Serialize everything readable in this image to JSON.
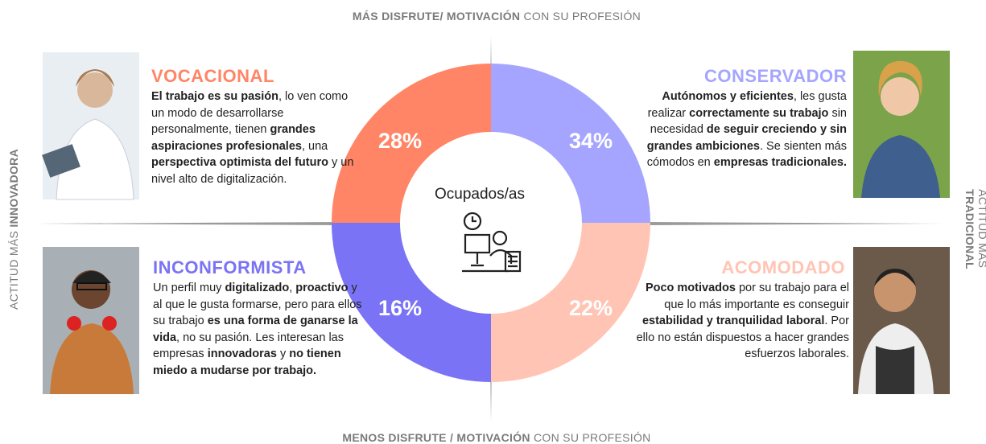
{
  "axes": {
    "top": [
      {
        "text": "MÁS DISFRUTE/ MOTIVACIÓN",
        "bold": true
      },
      {
        "text": " CON SU PROFESIÓN",
        "bold": false
      }
    ],
    "bottom": [
      {
        "text": "MENOS DISFRUTE / MOTIVACIÓN",
        "bold": true
      },
      {
        "text": " CON SU PROFESIÓN",
        "bold": false
      }
    ],
    "left": [
      {
        "text": "ACTITUD MÁS ",
        "bold": false
      },
      {
        "text": "INNOVADORA",
        "bold": true
      }
    ],
    "right": [
      {
        "text": "ACTITUD MÁS ",
        "bold": false
      },
      {
        "text": "TRADICIONAL",
        "bold": true
      }
    ]
  },
  "center_label": "Ocupados/as",
  "quadrants": [
    {
      "title": "VOCACIONAL",
      "percent": "28%",
      "color": "#ff8566",
      "text": [
        {
          "text": "El trabajo es su pasión",
          "bold": true
        },
        {
          "text": ", lo ven como un modo de desarrollarse personalmente, tienen ",
          "bold": false
        },
        {
          "text": "grandes aspiraciones profesionales",
          "bold": true
        },
        {
          "text": ", una ",
          "bold": false
        },
        {
          "text": "perspectiva optimista del futuro",
          "bold": true
        },
        {
          "text": " y un nivel alto de digitalización.",
          "bold": false
        }
      ]
    },
    {
      "title": "CONSERVADOR",
      "percent": "34%",
      "color": "#a5a5ff",
      "text": [
        {
          "text": "Autónomos y eficientes",
          "bold": true
        },
        {
          "text": ", les gusta realizar ",
          "bold": false
        },
        {
          "text": "correctamente su trabajo",
          "bold": true
        },
        {
          "text": " sin necesidad ",
          "bold": false
        },
        {
          "text": "de seguir creciendo y sin grandes ambiciones",
          "bold": true
        },
        {
          "text": ". Se sienten más cómodos en ",
          "bold": false
        },
        {
          "text": "empresas tradicionales.",
          "bold": true
        }
      ]
    },
    {
      "title": "INCONFORMISTA",
      "percent": "16%",
      "color": "#7a73f5",
      "text": [
        {
          "text": "Un perfil muy ",
          "bold": false
        },
        {
          "text": "digitalizado",
          "bold": true
        },
        {
          "text": ", ",
          "bold": false
        },
        {
          "text": "proactivo",
          "bold": true
        },
        {
          "text": " y al que le gusta formarse, pero para ellos su trabajo ",
          "bold": false
        },
        {
          "text": "es una forma de ganarse la vida",
          "bold": true
        },
        {
          "text": ", no su pasión. Les interesan las empresas ",
          "bold": false
        },
        {
          "text": "innovadoras",
          "bold": true
        },
        {
          "text": " y ",
          "bold": false
        },
        {
          "text": "no tienen miedo a mudarse por trabajo.",
          "bold": true
        }
      ]
    },
    {
      "title": "ACOMODADO",
      "percent": "22%",
      "color": "#ffc4b4",
      "text": [
        {
          "text": "Poco motivados",
          "bold": true
        },
        {
          "text": " por su trabajo para el que lo más importante es conseguir ",
          "bold": false
        },
        {
          "text": "estabilidad y tranquilidad laboral",
          "bold": true
        },
        {
          "text": ". Por ello no están dispuestos a hacer grandes esfuerzos laborales.",
          "bold": false
        }
      ]
    }
  ]
}
